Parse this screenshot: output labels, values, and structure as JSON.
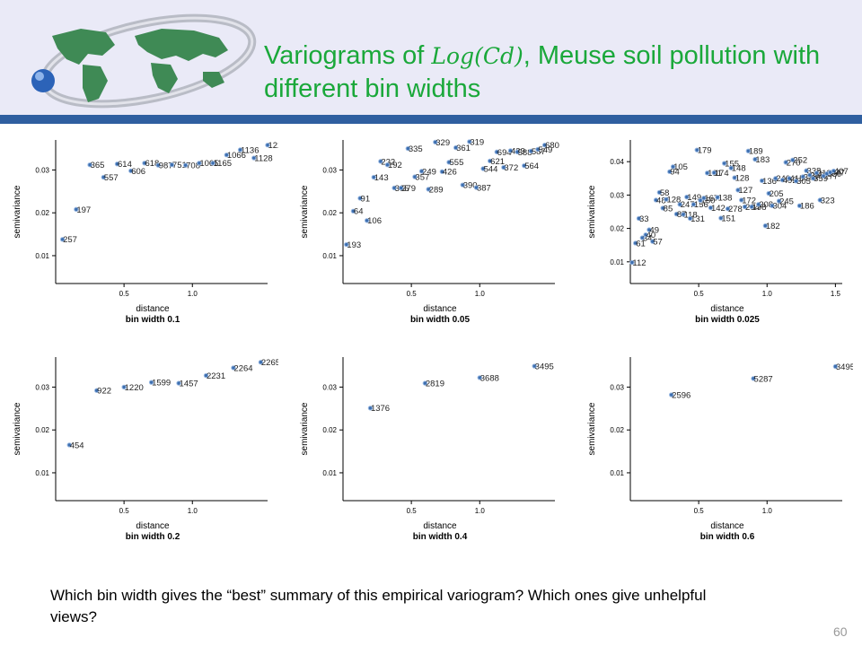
{
  "slide": {
    "title_prefix": "Variograms of ",
    "title_math": "Log(Cd)",
    "title_suffix": ", Meuse soil pollution with different bin widths",
    "question": "Which bin width gives the “best” summary of this empirical variogram? Which ones give unhelpful views?",
    "page_number": "60"
  },
  "colors": {
    "title": "#1aa83a",
    "header_bg": "#eaeaf7",
    "header_bar": "#2f5fa0",
    "point": "#3d6fb0"
  },
  "chart_data": [
    {
      "type": "scatter",
      "xlabel": "distance",
      "ylabel": "semivariance",
      "subtitle": "bin width 0.1",
      "xlim": [
        0,
        1.55
      ],
      "ylim": [
        0.0035,
        0.037
      ],
      "xticks": [
        0.5,
        1.0
      ],
      "yticks": [
        0.01,
        0.02,
        0.03
      ],
      "points": [
        {
          "x": 0.05,
          "y": 0.0138,
          "label": "257"
        },
        {
          "x": 0.15,
          "y": 0.0208,
          "label": "197"
        },
        {
          "x": 0.25,
          "y": 0.0312,
          "label": "365"
        },
        {
          "x": 0.35,
          "y": 0.0283,
          "label": "557"
        },
        {
          "x": 0.45,
          "y": 0.0314,
          "label": "614"
        },
        {
          "x": 0.55,
          "y": 0.0298,
          "label": "606"
        },
        {
          "x": 0.65,
          "y": 0.0316,
          "label": "618"
        },
        {
          "x": 0.75,
          "y": 0.0311,
          "label": "987"
        },
        {
          "x": 0.85,
          "y": 0.0312,
          "label": "751"
        },
        {
          "x": 0.95,
          "y": 0.0311,
          "label": "708"
        },
        {
          "x": 1.05,
          "y": 0.0316,
          "label": "1065"
        },
        {
          "x": 1.15,
          "y": 0.0316,
          "label": "1165"
        },
        {
          "x": 1.25,
          "y": 0.0335,
          "label": "1066"
        },
        {
          "x": 1.35,
          "y": 0.0347,
          "label": "1136"
        },
        {
          "x": 1.45,
          "y": 0.0328,
          "label": "1128"
        },
        {
          "x": 1.55,
          "y": 0.0358,
          "label": "1229"
        }
      ]
    },
    {
      "type": "scatter",
      "xlabel": "distance",
      "ylabel": "semivariance",
      "subtitle": "bin width 0.05",
      "xlim": [
        0,
        1.55
      ],
      "ylim": [
        0.0035,
        0.037
      ],
      "xticks": [
        0.5,
        1.0
      ],
      "yticks": [
        0.01,
        0.02,
        0.03
      ],
      "points": [
        {
          "x": 0.025,
          "y": 0.0126,
          "label": "193"
        },
        {
          "x": 0.075,
          "y": 0.0204,
          "label": "64"
        },
        {
          "x": 0.125,
          "y": 0.0234,
          "label": "91"
        },
        {
          "x": 0.175,
          "y": 0.0182,
          "label": "106"
        },
        {
          "x": 0.225,
          "y": 0.0283,
          "label": "143"
        },
        {
          "x": 0.275,
          "y": 0.032,
          "label": "222"
        },
        {
          "x": 0.325,
          "y": 0.0312,
          "label": "192"
        },
        {
          "x": 0.375,
          "y": 0.0258,
          "label": "365"
        },
        {
          "x": 0.425,
          "y": 0.0258,
          "label": "379"
        },
        {
          "x": 0.475,
          "y": 0.035,
          "label": "335"
        },
        {
          "x": 0.525,
          "y": 0.0284,
          "label": "357"
        },
        {
          "x": 0.575,
          "y": 0.0297,
          "label": "249"
        },
        {
          "x": 0.625,
          "y": 0.0255,
          "label": "289"
        },
        {
          "x": 0.675,
          "y": 0.0365,
          "label": "329"
        },
        {
          "x": 0.725,
          "y": 0.0296,
          "label": "426"
        },
        {
          "x": 0.775,
          "y": 0.0318,
          "label": "555"
        },
        {
          "x": 0.825,
          "y": 0.0352,
          "label": "361"
        },
        {
          "x": 0.875,
          "y": 0.0265,
          "label": "390"
        },
        {
          "x": 0.925,
          "y": 0.0366,
          "label": "319"
        },
        {
          "x": 0.975,
          "y": 0.0259,
          "label": "387"
        },
        {
          "x": 1.025,
          "y": 0.0303,
          "label": "544"
        },
        {
          "x": 1.075,
          "y": 0.0321,
          "label": "621"
        },
        {
          "x": 1.125,
          "y": 0.0342,
          "label": "694"
        },
        {
          "x": 1.175,
          "y": 0.0306,
          "label": "372"
        },
        {
          "x": 1.225,
          "y": 0.0345,
          "label": "439"
        },
        {
          "x": 1.275,
          "y": 0.0342,
          "label": "588"
        },
        {
          "x": 1.325,
          "y": 0.031,
          "label": "564"
        },
        {
          "x": 1.375,
          "y": 0.0344,
          "label": "587"
        },
        {
          "x": 1.425,
          "y": 0.0348,
          "label": "549"
        },
        {
          "x": 1.475,
          "y": 0.0358,
          "label": "680"
        }
      ]
    },
    {
      "type": "scatter",
      "xlabel": "distance",
      "ylabel": "semivariance",
      "subtitle": "bin width 0.025",
      "xlim": [
        0,
        1.55
      ],
      "ylim": [
        0.0035,
        0.0465
      ],
      "xticks": [
        0.5,
        1.0,
        1.5
      ],
      "yticks": [
        0.01,
        0.02,
        0.03,
        0.04
      ],
      "points": [
        {
          "x": 0.0125,
          "y": 0.0098,
          "label": "112"
        },
        {
          "x": 0.0375,
          "y": 0.0156,
          "label": "61"
        },
        {
          "x": 0.0625,
          "y": 0.023,
          "label": "33"
        },
        {
          "x": 0.0875,
          "y": 0.0172,
          "label": "34"
        },
        {
          "x": 0.1125,
          "y": 0.0181,
          "label": "40"
        },
        {
          "x": 0.1375,
          "y": 0.0196,
          "label": "49"
        },
        {
          "x": 0.1625,
          "y": 0.0161,
          "label": "57"
        },
        {
          "x": 0.1875,
          "y": 0.0285,
          "label": "48"
        },
        {
          "x": 0.2125,
          "y": 0.0308,
          "label": "58"
        },
        {
          "x": 0.2375,
          "y": 0.0261,
          "label": "85"
        },
        {
          "x": 0.2625,
          "y": 0.0287,
          "label": "128"
        },
        {
          "x": 0.2875,
          "y": 0.037,
          "label": "94"
        },
        {
          "x": 0.3125,
          "y": 0.0385,
          "label": "105"
        },
        {
          "x": 0.3375,
          "y": 0.0243,
          "label": "87"
        },
        {
          "x": 0.3625,
          "y": 0.0272,
          "label": "247"
        },
        {
          "x": 0.3875,
          "y": 0.0242,
          "label": "118"
        },
        {
          "x": 0.4125,
          "y": 0.0294,
          "label": "149"
        },
        {
          "x": 0.4375,
          "y": 0.023,
          "label": "131"
        },
        {
          "x": 0.4625,
          "y": 0.0272,
          "label": "156"
        },
        {
          "x": 0.4875,
          "y": 0.0435,
          "label": "179"
        },
        {
          "x": 0.5125,
          "y": 0.0284,
          "label": "150"
        },
        {
          "x": 0.5375,
          "y": 0.0291,
          "label": "167"
        },
        {
          "x": 0.5625,
          "y": 0.0366,
          "label": "101"
        },
        {
          "x": 0.5875,
          "y": 0.0262,
          "label": "142"
        },
        {
          "x": 0.6125,
          "y": 0.0367,
          "label": "174"
        },
        {
          "x": 0.6375,
          "y": 0.0293,
          "label": "138"
        },
        {
          "x": 0.6625,
          "y": 0.0231,
          "label": "151"
        },
        {
          "x": 0.6875,
          "y": 0.0395,
          "label": "155"
        },
        {
          "x": 0.7125,
          "y": 0.0259,
          "label": "278"
        },
        {
          "x": 0.7375,
          "y": 0.0381,
          "label": "148"
        },
        {
          "x": 0.7625,
          "y": 0.0352,
          "label": "128"
        },
        {
          "x": 0.7875,
          "y": 0.0315,
          "label": "127"
        },
        {
          "x": 0.8125,
          "y": 0.0285,
          "label": "172"
        },
        {
          "x": 0.8375,
          "y": 0.0265,
          "label": "204"
        },
        {
          "x": 0.8625,
          "y": 0.0432,
          "label": "189"
        },
        {
          "x": 0.8875,
          "y": 0.0265,
          "label": "198"
        },
        {
          "x": 0.9125,
          "y": 0.0407,
          "label": "183"
        },
        {
          "x": 0.9375,
          "y": 0.0272,
          "label": "208"
        },
        {
          "x": 0.9625,
          "y": 0.0343,
          "label": "136"
        },
        {
          "x": 0.9875,
          "y": 0.0208,
          "label": "182"
        },
        {
          "x": 1.0125,
          "y": 0.0305,
          "label": "205"
        },
        {
          "x": 1.0375,
          "y": 0.0268,
          "label": "304"
        },
        {
          "x": 1.0625,
          "y": 0.035,
          "label": "240"
        },
        {
          "x": 1.0875,
          "y": 0.0282,
          "label": "245"
        },
        {
          "x": 1.1125,
          "y": 0.0345,
          "label": "492"
        },
        {
          "x": 1.1375,
          "y": 0.0398,
          "label": "270"
        },
        {
          "x": 1.1625,
          "y": 0.035,
          "label": "415"
        },
        {
          "x": 1.1875,
          "y": 0.0405,
          "label": "252"
        },
        {
          "x": 1.2125,
          "y": 0.0342,
          "label": "305"
        },
        {
          "x": 1.2375,
          "y": 0.0268,
          "label": "186"
        },
        {
          "x": 1.2625,
          "y": 0.0355,
          "label": "328"
        },
        {
          "x": 1.2875,
          "y": 0.0373,
          "label": "338"
        },
        {
          "x": 1.3125,
          "y": 0.036,
          "label": "296"
        },
        {
          "x": 1.3375,
          "y": 0.035,
          "label": "359"
        },
        {
          "x": 1.3625,
          "y": 0.0366,
          "label": "313"
        },
        {
          "x": 1.3875,
          "y": 0.0285,
          "label": "323"
        },
        {
          "x": 1.4125,
          "y": 0.0357,
          "label": "277"
        },
        {
          "x": 1.4375,
          "y": 0.0364,
          "label": "350"
        },
        {
          "x": 1.4625,
          "y": 0.0368,
          "label": "347"
        },
        {
          "x": 1.4875,
          "y": 0.0372,
          "label": "407"
        }
      ]
    },
    {
      "type": "scatter",
      "xlabel": "distance",
      "ylabel": "semivariance",
      "subtitle": "bin width 0.2",
      "xlim": [
        0,
        1.55
      ],
      "ylim": [
        0.0035,
        0.037
      ],
      "xticks": [
        0.5,
        1.0
      ],
      "yticks": [
        0.01,
        0.02,
        0.03
      ],
      "points": [
        {
          "x": 0.1,
          "y": 0.0165,
          "label": "454"
        },
        {
          "x": 0.3,
          "y": 0.0292,
          "label": "922"
        },
        {
          "x": 0.5,
          "y": 0.03,
          "label": "1220"
        },
        {
          "x": 0.7,
          "y": 0.0311,
          "label": "1599"
        },
        {
          "x": 0.9,
          "y": 0.0309,
          "label": "1457"
        },
        {
          "x": 1.1,
          "y": 0.0327,
          "label": "2231"
        },
        {
          "x": 1.3,
          "y": 0.0345,
          "label": "2264"
        },
        {
          "x": 1.5,
          "y": 0.0358,
          "label": "2265"
        }
      ]
    },
    {
      "type": "scatter",
      "xlabel": "distance",
      "ylabel": "semivariance",
      "subtitle": "bin width 0.4",
      "xlim": [
        0,
        1.55
      ],
      "ylim": [
        0.0035,
        0.037
      ],
      "xticks": [
        0.5,
        1.0
      ],
      "yticks": [
        0.01,
        0.02,
        0.03
      ],
      "points": [
        {
          "x": 0.2,
          "y": 0.0251,
          "label": "1376"
        },
        {
          "x": 0.6,
          "y": 0.0309,
          "label": "2819"
        },
        {
          "x": 1.0,
          "y": 0.0322,
          "label": "3688"
        },
        {
          "x": 1.4,
          "y": 0.0349,
          "label": "3495"
        }
      ]
    },
    {
      "type": "scatter",
      "xlabel": "distance",
      "ylabel": "semivariance",
      "subtitle": "bin width 0.6",
      "xlim": [
        0,
        1.55
      ],
      "ylim": [
        0.0035,
        0.037
      ],
      "xticks": [
        0.5,
        1.0
      ],
      "yticks": [
        0.01,
        0.02,
        0.03
      ],
      "points": [
        {
          "x": 0.3,
          "y": 0.0282,
          "label": "2596"
        },
        {
          "x": 0.9,
          "y": 0.032,
          "label": "5287"
        },
        {
          "x": 1.5,
          "y": 0.0348,
          "label": "3495"
        }
      ]
    }
  ]
}
